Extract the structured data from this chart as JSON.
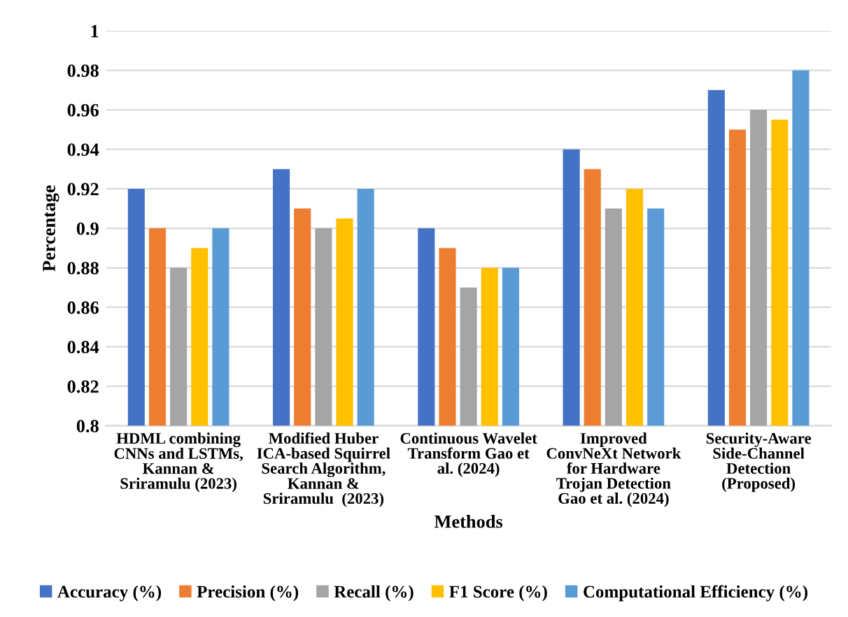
{
  "chart_data": {
    "type": "bar",
    "xlabel": "Methods",
    "ylabel": "Percentage",
    "categories": [
      "HDML combining\nCNNs and LSTMs,\nKannan &\nSriramulu (2023)",
      "Modified Huber\nICA-based Squirrel\nSearch Algorithm,\nKannan &\nSriramulu  (2023)",
      "Continuous Wavelet\nTransform Gao et\nal. (2024)",
      "Improved\nConvNeXt Network\nfor Hardware\nTrojan Detection\nGao et al. (2024)",
      "Security-Aware\nSide-Channel\nDetection\n(Proposed)"
    ],
    "series": [
      {
        "name": "Accuracy (%)",
        "color": "#4472c4",
        "values": [
          0.92,
          0.93,
          0.9,
          0.94,
          0.97
        ]
      },
      {
        "name": "Precision (%)",
        "color": "#ed7d31",
        "values": [
          0.9,
          0.91,
          0.89,
          0.93,
          0.95
        ]
      },
      {
        "name": "Recall (%)",
        "color": "#a5a5a5",
        "values": [
          0.88,
          0.9,
          0.87,
          0.91,
          0.96
        ]
      },
      {
        "name": "F1 Score (%)",
        "color": "#ffc000",
        "values": [
          0.89,
          0.905,
          0.88,
          0.92,
          0.955
        ]
      },
      {
        "name": "Computational Efficiency (%)",
        "color": "#5b9bd5",
        "values": [
          0.9,
          0.92,
          0.88,
          0.91,
          0.98
        ]
      }
    ],
    "ylim": [
      0.8,
      1.0
    ],
    "yticks": [
      {
        "value": 0.8,
        "label": "0.8"
      },
      0.82,
      0.84,
      0.86,
      0.88,
      {
        "value": 0.9,
        "label": "0.9"
      },
      0.92,
      0.94,
      0.96,
      0.98,
      {
        "value": 1.0,
        "label": "1"
      }
    ],
    "grid": "y",
    "legend": "bottom"
  }
}
